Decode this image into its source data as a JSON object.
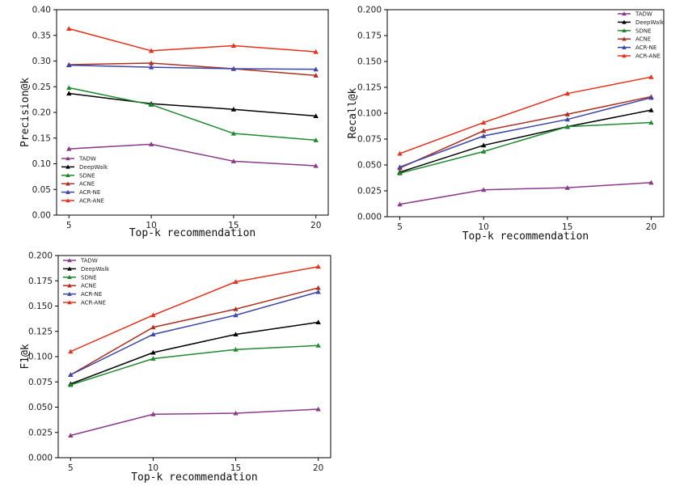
{
  "chart_data": [
    {
      "type": "line",
      "xlabel": "Top-k recommendation",
      "ylabel": "Precision@k",
      "x": [
        5,
        10,
        15,
        20
      ],
      "xticks": [
        "5",
        "10",
        "15",
        "20"
      ],
      "ylim": [
        0,
        0.4
      ],
      "yticks": [
        "0.00",
        "0.05",
        "0.10",
        "0.15",
        "0.20",
        "0.25",
        "0.30",
        "0.35",
        "0.40"
      ],
      "grid": false,
      "legend_position": "bottom-left",
      "series": [
        {
          "name": "TADW",
          "color": "#8B3A8B",
          "values": [
            0.129,
            0.138,
            0.105,
            0.096
          ]
        },
        {
          "name": "DeepWalk",
          "color": "#000000",
          "values": [
            0.237,
            0.217,
            0.206,
            0.193
          ]
        },
        {
          "name": "SDNE",
          "color": "#1E8B2E",
          "values": [
            0.248,
            0.215,
            0.159,
            0.146
          ]
        },
        {
          "name": "ACNE",
          "color": "#B03020",
          "values": [
            0.293,
            0.296,
            0.285,
            0.272
          ]
        },
        {
          "name": "ACR-NE",
          "color": "#3C46A8",
          "values": [
            0.292,
            0.288,
            0.285,
            0.284
          ]
        },
        {
          "name": "ACR-ANE",
          "color": "#E8301A",
          "values": [
            0.363,
            0.32,
            0.33,
            0.318
          ]
        }
      ]
    },
    {
      "type": "line",
      "xlabel": "Top-k recommendation",
      "ylabel": "Recall@k",
      "x": [
        5,
        10,
        15,
        20
      ],
      "xticks": [
        "5",
        "10",
        "15",
        "20"
      ],
      "ylim": [
        0,
        0.2
      ],
      "yticks": [
        "0.000",
        "0.025",
        "0.050",
        "0.075",
        "0.100",
        "0.125",
        "0.150",
        "0.175",
        "0.200"
      ],
      "grid": false,
      "legend_position": "top-right",
      "series": [
        {
          "name": "TADW",
          "color": "#8B3A8B",
          "values": [
            0.012,
            0.026,
            0.028,
            0.033
          ]
        },
        {
          "name": "DeepWalk",
          "color": "#000000",
          "values": [
            0.043,
            0.069,
            0.087,
            0.103
          ]
        },
        {
          "name": "SDNE",
          "color": "#1E8B2E",
          "values": [
            0.042,
            0.063,
            0.087,
            0.091
          ]
        },
        {
          "name": "ACNE",
          "color": "#B03020",
          "values": [
            0.047,
            0.083,
            0.099,
            0.116
          ]
        },
        {
          "name": "ACR-NE",
          "color": "#3C46A8",
          "values": [
            0.048,
            0.078,
            0.094,
            0.115
          ]
        },
        {
          "name": "ACR-ANE",
          "color": "#E8301A",
          "values": [
            0.061,
            0.091,
            0.119,
            0.135
          ]
        }
      ]
    },
    {
      "type": "line",
      "xlabel": "Top-k recommendation",
      "ylabel": "F1@k",
      "x": [
        5,
        10,
        15,
        20
      ],
      "xticks": [
        "5",
        "10",
        "15",
        "20"
      ],
      "ylim": [
        0,
        0.2
      ],
      "yticks": [
        "0.000",
        "0.025",
        "0.050",
        "0.075",
        "0.100",
        "0.125",
        "0.150",
        "0.175",
        "0.200"
      ],
      "grid": false,
      "legend_position": "top-left",
      "series": [
        {
          "name": "TADW",
          "color": "#8B3A8B",
          "values": [
            0.022,
            0.043,
            0.044,
            0.048
          ]
        },
        {
          "name": "DeepWalk",
          "color": "#000000",
          "values": [
            0.073,
            0.104,
            0.122,
            0.134
          ]
        },
        {
          "name": "SDNE",
          "color": "#1E8B2E",
          "values": [
            0.072,
            0.098,
            0.107,
            0.111
          ]
        },
        {
          "name": "ACNE",
          "color": "#B03020",
          "values": [
            0.082,
            0.129,
            0.147,
            0.168
          ]
        },
        {
          "name": "ACR-NE",
          "color": "#3C46A8",
          "values": [
            0.082,
            0.122,
            0.141,
            0.164
          ]
        },
        {
          "name": "ACR-ANE",
          "color": "#E8301A",
          "values": [
            0.105,
            0.141,
            0.174,
            0.189
          ]
        }
      ]
    }
  ]
}
